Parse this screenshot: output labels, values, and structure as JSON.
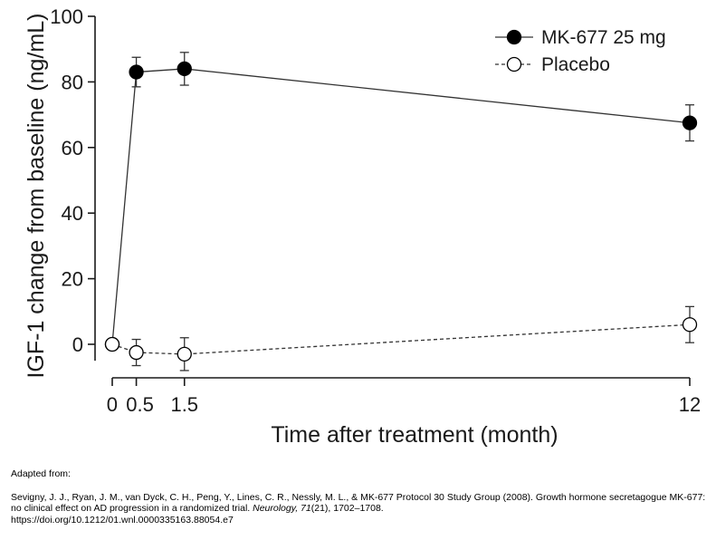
{
  "chart_data": {
    "type": "line",
    "title": "",
    "xlabel": "Time after treatment (month)",
    "ylabel": "IGF-1 change from baseline (ng/mL)",
    "xlim": [
      0,
      12
    ],
    "ylim": [
      -5,
      100
    ],
    "x_ticks": [
      0,
      0.5,
      1.5,
      12
    ],
    "x_tick_labels": [
      "0",
      "0.5",
      "1.5",
      "12"
    ],
    "y_ticks": [
      0,
      20,
      40,
      60,
      80,
      100
    ],
    "y_tick_labels": [
      "0",
      "20",
      "40",
      "60",
      "80",
      "100"
    ],
    "grid": false,
    "legend": "top-right",
    "series": [
      {
        "name": "MK-677 25 mg",
        "marker": "filled-circle",
        "line": "solid",
        "color": "#000000",
        "x": [
          0,
          0.5,
          1.5,
          12
        ],
        "y": [
          0,
          83,
          84,
          67.5
        ],
        "err": [
          0,
          4.5,
          5,
          5.5
        ]
      },
      {
        "name": "Placebo",
        "marker": "open-circle",
        "line": "dashed",
        "color": "#000000",
        "x": [
          0,
          0.5,
          1.5,
          12
        ],
        "y": [
          0,
          -2.5,
          -3,
          6
        ],
        "err": [
          0,
          4,
          5,
          5.5
        ]
      }
    ]
  },
  "citation": {
    "adapted": "Adapted from:",
    "text_before": "Sevigny, J. J., Ryan, J. M., van Dyck, C. H., Peng, Y., Lines, C. R., Nessly, M. L., & MK-677 Protocol 30 Study Group (2008). Growth hormone secretagogue MK-677: no clinical effect on AD progression in a randomized trial. ",
    "journal": "Neurology, 71",
    "text_after": "(21), 1702–1708.",
    "doi": "https://doi.org/10.1212/01.wnl.0000335163.88054.e7"
  }
}
